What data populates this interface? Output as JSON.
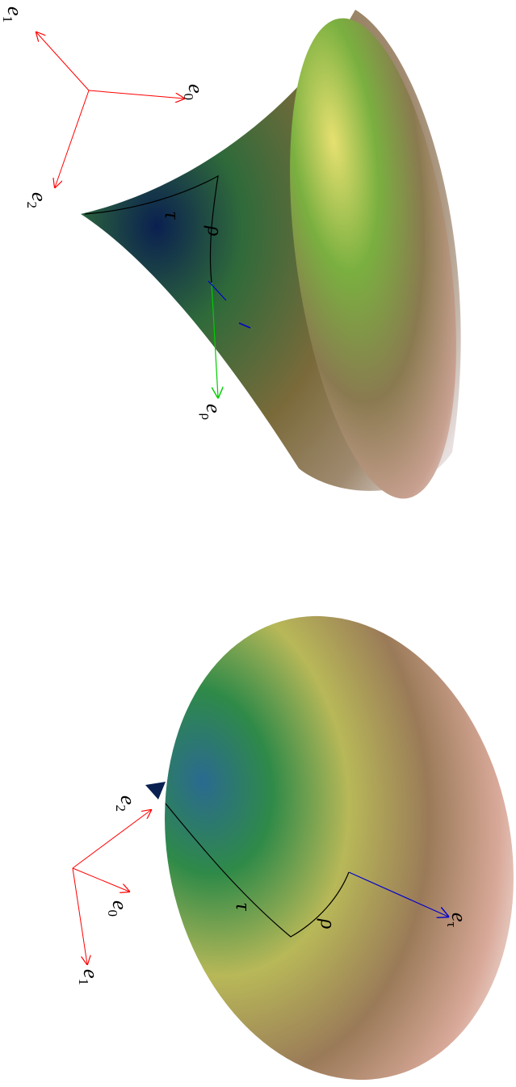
{
  "top_panel": {
    "frame_labels": [
      {
        "base": "e",
        "sub": "1"
      },
      {
        "base": "e",
        "sub": "0"
      },
      {
        "base": "e",
        "sub": "2"
      }
    ],
    "curve_labels": [
      "τ",
      "ρ"
    ],
    "vector_label": {
      "base": "e",
      "sub": "ρ"
    }
  },
  "bottom_panel": {
    "frame_labels": [
      {
        "base": "e",
        "sub": "2"
      },
      {
        "base": "e",
        "sub": "0"
      },
      {
        "base": "e",
        "sub": "1"
      }
    ],
    "curve_labels": [
      "τ",
      "ρ"
    ],
    "vector_label": {
      "base": "e",
      "sub": "τ"
    }
  }
}
